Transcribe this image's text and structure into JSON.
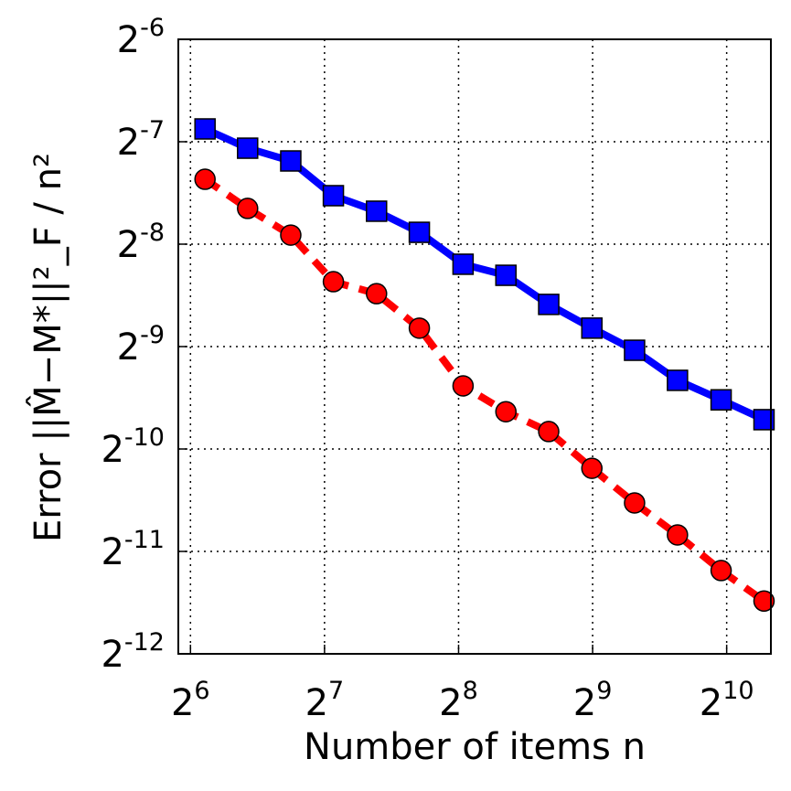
{
  "chart_data": {
    "type": "line",
    "xlabel": "Number of items n",
    "ylabel": "Error  ||M̂−M*||²_F / n²",
    "x": [
      69,
      86,
      107.5,
      134,
      167.5,
      209,
      262,
      327,
      408,
      510,
      636,
      794,
      995,
      1242
    ],
    "series": [
      {
        "name": "blue",
        "color": "#0000ff",
        "marker": "square",
        "dash": "solid",
        "values": [
          0.00852,
          0.007479,
          0.00686,
          0.005423,
          0.004882,
          0.004232,
          0.00341,
          0.003164,
          0.002598,
          0.002213,
          0.001905,
          0.001554,
          0.001362,
          0.001191
        ]
      },
      {
        "name": "red",
        "color": "#ff0000",
        "marker": "circle",
        "dash": "dashed",
        "values": [
          0.00606,
          0.004975,
          0.004153,
          0.00303,
          0.002794,
          0.002213,
          0.001497,
          0.001257,
          0.001099,
          0.000857,
          0.000678,
          0.000546,
          0.000429,
          0.000349
        ]
      }
    ],
    "xscale": "log2",
    "yscale": "log2",
    "xlim": [
      60.1,
      1287
    ],
    "ylim": [
      0.000244140625,
      0.015625
    ],
    "xticks": [
      {
        "value": 64,
        "label": "2^6"
      },
      {
        "value": 128,
        "label": "2^7"
      },
      {
        "value": 256,
        "label": "2^8"
      },
      {
        "value": 512,
        "label": "2^9"
      },
      {
        "value": 1024,
        "label": "2^10"
      }
    ],
    "yticks": [
      {
        "value": 0.000244140625,
        "label": "2^-12"
      },
      {
        "value": 0.00048828125,
        "label": "2^-11"
      },
      {
        "value": 0.0009765625,
        "label": "2^-10"
      },
      {
        "value": 0.001953125,
        "label": "2^-9"
      },
      {
        "value": 0.00390625,
        "label": "2^-8"
      },
      {
        "value": 0.0078125,
        "label": "2^-7"
      },
      {
        "value": 0.015625,
        "label": "2^-6"
      }
    ],
    "grid": true
  }
}
